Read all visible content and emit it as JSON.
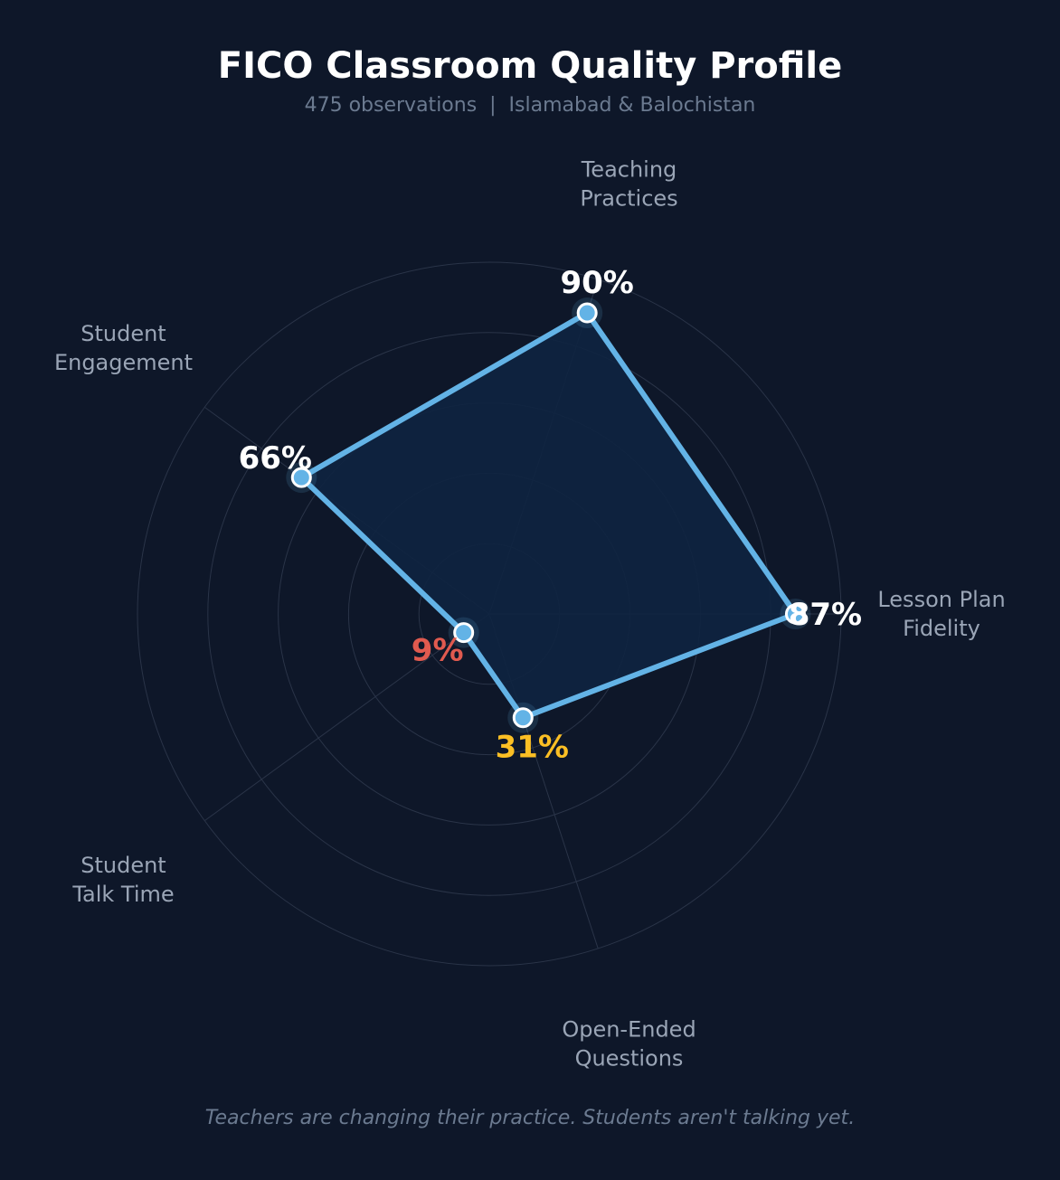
{
  "chart_data": {
    "type": "radar",
    "title": "FICO Classroom Quality Profile",
    "subtitle": "475 observations  |  Islamabad & Balochistan",
    "footnote": "Teachers are changing their practice. Students aren't talking yet.",
    "categories": [
      "Lesson Plan\nFidelity",
      "Teaching\nPractices",
      "Student\nEngagement",
      "Student\nTalk Time",
      "Open-Ended\nQuestions"
    ],
    "values": [
      87,
      90,
      66,
      9,
      31
    ],
    "value_labels": [
      "87%",
      "90%",
      "66%",
      "9%",
      "31%"
    ],
    "value_label_colors": [
      "#ffffff",
      "#ffffff",
      "#ffffff",
      "#e05a4f",
      "#fbbf24"
    ],
    "rlim": [
      0,
      100
    ],
    "rings": [
      20,
      40,
      60,
      80,
      100
    ],
    "grid": true,
    "colors": {
      "line": "#63b3e6",
      "fill": "#0e2340",
      "grid": "#2a3448",
      "axis_label": "#9aa5b6",
      "background": "#0e1729"
    }
  }
}
